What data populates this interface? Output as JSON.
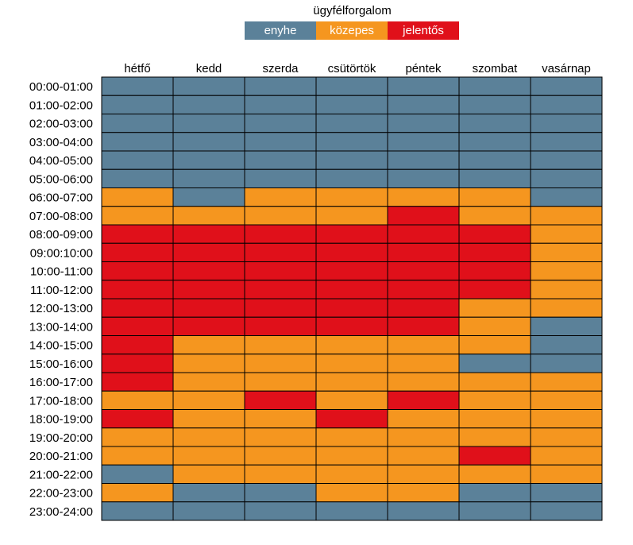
{
  "chart_data": {
    "type": "heatmap",
    "legend_title": "ügyfélforgalom",
    "levels": [
      {
        "key": "e",
        "label": "enyhe",
        "color": "#5B8199"
      },
      {
        "key": "k",
        "label": "közepes",
        "color": "#F5961F"
      },
      {
        "key": "j",
        "label": "jelentős",
        "color": "#E0101A"
      }
    ],
    "columns": [
      "hétfő",
      "kedd",
      "szerda",
      "csütörtök",
      "péntek",
      "szombat",
      "vasárnap"
    ],
    "rows": [
      "00:00-01:00",
      "01:00-02:00",
      "02:00-03:00",
      "03:00-04:00",
      "04:00-05:00",
      "05:00-06:00",
      "06:00-07:00",
      "07:00-08:00",
      "08:00-09:00",
      "09:00:10:00",
      "10:00-11:00",
      "11:00-12:00",
      "12:00-13:00",
      "13:00-14:00",
      "14:00-15:00",
      "15:00-16:00",
      "16:00-17:00",
      "17:00-18:00",
      "18:00-19:00",
      "19:00-20:00",
      "20:00-21:00",
      "21:00-22:00",
      "22:00-23:00",
      "23:00-24:00"
    ],
    "values": [
      [
        "e",
        "e",
        "e",
        "e",
        "e",
        "e",
        "e"
      ],
      [
        "e",
        "e",
        "e",
        "e",
        "e",
        "e",
        "e"
      ],
      [
        "e",
        "e",
        "e",
        "e",
        "e",
        "e",
        "e"
      ],
      [
        "e",
        "e",
        "e",
        "e",
        "e",
        "e",
        "e"
      ],
      [
        "e",
        "e",
        "e",
        "e",
        "e",
        "e",
        "e"
      ],
      [
        "e",
        "e",
        "e",
        "e",
        "e",
        "e",
        "e"
      ],
      [
        "k",
        "e",
        "k",
        "k",
        "k",
        "k",
        "e"
      ],
      [
        "k",
        "k",
        "k",
        "k",
        "j",
        "k",
        "k"
      ],
      [
        "j",
        "j",
        "j",
        "j",
        "j",
        "j",
        "k"
      ],
      [
        "j",
        "j",
        "j",
        "j",
        "j",
        "j",
        "k"
      ],
      [
        "j",
        "j",
        "j",
        "j",
        "j",
        "j",
        "k"
      ],
      [
        "j",
        "j",
        "j",
        "j",
        "j",
        "j",
        "k"
      ],
      [
        "j",
        "j",
        "j",
        "j",
        "j",
        "k",
        "k"
      ],
      [
        "j",
        "j",
        "j",
        "j",
        "j",
        "k",
        "e"
      ],
      [
        "j",
        "k",
        "k",
        "k",
        "k",
        "k",
        "e"
      ],
      [
        "j",
        "k",
        "k",
        "k",
        "k",
        "e",
        "e"
      ],
      [
        "j",
        "k",
        "k",
        "k",
        "k",
        "k",
        "k"
      ],
      [
        "k",
        "k",
        "j",
        "k",
        "j",
        "k",
        "k"
      ],
      [
        "j",
        "k",
        "k",
        "j",
        "k",
        "k",
        "k"
      ],
      [
        "k",
        "k",
        "k",
        "k",
        "k",
        "k",
        "k"
      ],
      [
        "k",
        "k",
        "k",
        "k",
        "k",
        "j",
        "k"
      ],
      [
        "e",
        "k",
        "k",
        "k",
        "k",
        "k",
        "k"
      ],
      [
        "k",
        "e",
        "e",
        "k",
        "k",
        "e",
        "e"
      ],
      [
        "e",
        "e",
        "e",
        "e",
        "e",
        "e",
        "e"
      ]
    ]
  }
}
